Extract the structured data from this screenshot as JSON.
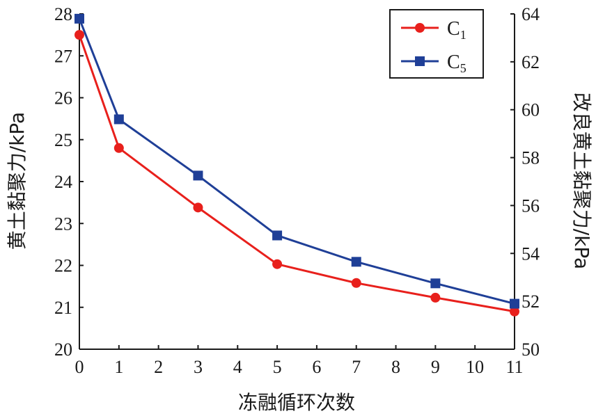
{
  "chart_data": {
    "type": "line",
    "x": [
      0,
      1,
      3,
      5,
      7,
      9,
      11
    ],
    "xlabel": "冻融循环次数",
    "xlim": [
      0,
      11
    ],
    "xticks": [
      "0",
      "1",
      "2",
      "3",
      "4",
      "5",
      "6",
      "7",
      "8",
      "9",
      "10",
      "11"
    ],
    "y_left": {
      "label": "黄土黏聚力/kPa",
      "lim": [
        20,
        28
      ],
      "ticks": [
        "20",
        "21",
        "22",
        "23",
        "24",
        "25",
        "26",
        "27",
        "28"
      ]
    },
    "y_right": {
      "label": "改良黄土黏聚力/kPa",
      "lim": [
        50,
        64
      ],
      "ticks": [
        "50",
        "52",
        "54",
        "56",
        "58",
        "60",
        "62",
        "64"
      ]
    },
    "series": [
      {
        "name": "C",
        "subscript": "1",
        "axis": "left",
        "color": "#e8201c",
        "marker": "circle",
        "values": [
          27.5,
          24.8,
          23.38,
          22.03,
          21.58,
          21.23,
          20.9
        ]
      },
      {
        "name": "C",
        "subscript": "5",
        "axis": "right",
        "color": "#1f3f97",
        "marker": "square",
        "values": [
          63.8,
          59.6,
          57.25,
          54.75,
          53.65,
          52.75,
          51.9
        ]
      }
    ],
    "legend_position": "top-right",
    "grid": false
  }
}
